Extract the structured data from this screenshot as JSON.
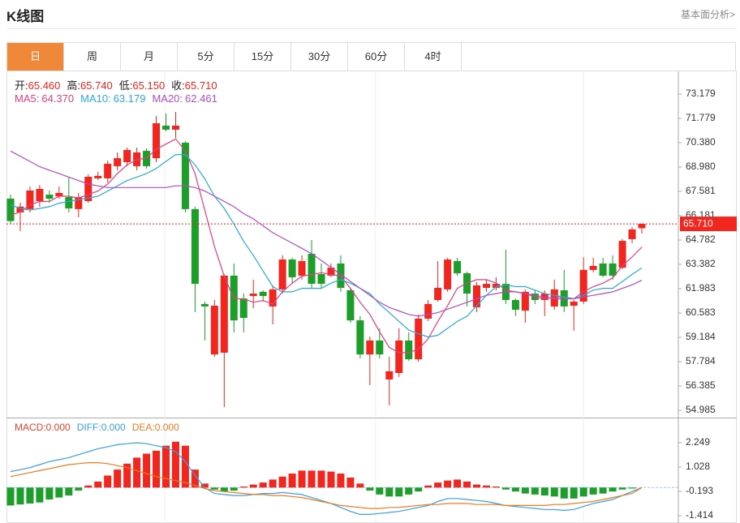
{
  "header": {
    "title": "K线图",
    "link": "基本面分析>"
  },
  "tabs": [
    "日",
    "周",
    "月",
    "5分",
    "15分",
    "30分",
    "60分",
    "4时"
  ],
  "active_tab": 0,
  "chart_data": [
    {
      "type": "candlestick",
      "ohlc_labels": [
        {
          "name": "开:",
          "value_label": "65.460"
        },
        {
          "name": "高:",
          "value_label": "65.740"
        },
        {
          "name": "低:",
          "value_label": "65.150"
        },
        {
          "name": "收:",
          "value_label": "65.710"
        }
      ],
      "up_color": "#f0261f",
      "down_color": "#1d9e2a",
      "open": [
        67.16,
        66.37,
        66.56,
        67.02,
        67.39,
        67.3,
        67.25,
        66.56,
        67.02,
        68.33,
        68.33,
        69.03,
        69.26,
        69.03,
        69.91,
        69.49,
        71.36,
        71.13,
        70.38,
        66.56,
        61.1,
        58.2,
        58.3,
        62.73,
        61.42,
        61.56,
        61.8,
        60.96,
        61.94,
        63.66,
        62.73,
        63.99,
        62.82,
        62.73,
        63.43,
        61.89,
        60.16,
        58.2,
        59.0,
        56.76,
        57.13,
        59.0,
        57.92,
        60.26,
        61.33,
        61.94,
        63.57,
        62.87,
        60.91,
        62.03,
        62.03,
        62.26,
        61.33,
        60.72,
        61.7,
        61.33,
        60.96,
        61.89,
        61.0,
        61.24,
        63.06,
        63.43,
        63.43,
        63.19,
        64.83,
        65.46
      ],
      "high": [
        67.39,
        66.93,
        67.86,
        67.95,
        67.63,
        67.86,
        68.42,
        67.49,
        68.56,
        68.7,
        69.35,
        69.82,
        70.1,
        70.1,
        70.05,
        71.92,
        72.06,
        72.15,
        70.47,
        66.7,
        61.24,
        61.33,
        62.82,
        63.43,
        61.7,
        62.5,
        61.89,
        62.17,
        63.9,
        63.76,
        63.9,
        64.78,
        63.43,
        63.43,
        63.9,
        62.03,
        60.4,
        59.23,
        59.7,
        58.06,
        59.7,
        59.46,
        60.49,
        61.33,
        63.57,
        63.76,
        63.76,
        62.96,
        62.36,
        62.5,
        62.64,
        64.22,
        61.42,
        61.94,
        61.89,
        61.89,
        62.5,
        63.06,
        61.33,
        63.8,
        63.76,
        63.76,
        63.9,
        64.83,
        65.53,
        65.74
      ],
      "low": [
        65.71,
        65.29,
        66.37,
        66.7,
        66.93,
        67.16,
        66.37,
        66.09,
        66.93,
        68.23,
        68.09,
        68.79,
        69.03,
        68.79,
        68.89,
        69.26,
        71.03,
        70.66,
        66.37,
        60.63,
        59.0,
        58.06,
        55.17,
        59.46,
        59.46,
        60.86,
        61.24,
        59.93,
        61.7,
        62.26,
        62.5,
        62.03,
        62.03,
        62.64,
        61.8,
        60.02,
        57.97,
        56.43,
        57.97,
        55.27,
        56.9,
        57.83,
        57.78,
        60.12,
        61.24,
        61.8,
        62.73,
        60.96,
        60.63,
        61.8,
        61.89,
        61.1,
        60.4,
        60.02,
        61.1,
        60.4,
        60.77,
        60.63,
        59.56,
        61.1,
        62.92,
        62.64,
        62.5,
        63.1,
        64.59,
        65.15
      ],
      "close": [
        65.87,
        66.7,
        67.63,
        67.72,
        67.16,
        67.49,
        66.6,
        67.25,
        68.42,
        68.47,
        69.17,
        69.49,
        69.96,
        69.82,
        69.03,
        71.5,
        71.13,
        71.36,
        66.56,
        62.26,
        60.96,
        61.0,
        62.73,
        60.16,
        60.3,
        61.7,
        61.56,
        61.94,
        63.66,
        62.64,
        63.57,
        62.26,
        62.26,
        63.19,
        62.03,
        60.16,
        58.2,
        59.0,
        58.2,
        57.23,
        59.0,
        57.92,
        60.26,
        61.1,
        62.03,
        63.66,
        62.87,
        61.7,
        62.17,
        62.26,
        62.26,
        61.33,
        60.77,
        61.8,
        61.33,
        61.7,
        61.94,
        60.96,
        61.24,
        63.06,
        63.29,
        62.73,
        62.73,
        64.73,
        65.39,
        65.71
      ],
      "series": [
        {
          "name": "MA5:",
          "value_label": "64.370",
          "color": "#e0407f",
          "values": [
            66.2,
            66.4,
            66.8,
            67.0,
            67.0,
            67.3,
            67.3,
            67.2,
            67.4,
            67.6,
            68.0,
            68.6,
            69.1,
            69.4,
            69.5,
            70.0,
            70.3,
            70.6,
            69.9,
            68.6,
            66.5,
            64.4,
            62.7,
            61.4,
            61.4,
            61.2,
            61.3,
            61.1,
            61.8,
            62.3,
            62.7,
            62.8,
            62.9,
            62.8,
            62.7,
            62.0,
            61.2,
            60.5,
            59.5,
            58.6,
            58.3,
            58.3,
            58.5,
            59.1,
            60.1,
            61.0,
            62.0,
            62.3,
            62.5,
            62.5,
            62.3,
            61.9,
            61.8,
            61.7,
            61.5,
            61.4,
            61.5,
            61.5,
            61.4,
            61.8,
            62.1,
            62.3,
            62.6,
            63.3,
            63.8,
            64.37
          ]
        },
        {
          "name": "MA10:",
          "value_label": "63.179",
          "color": "#2aaad8",
          "values": [
            66.8,
            66.6,
            66.5,
            66.6,
            66.7,
            66.9,
            67.0,
            67.1,
            67.2,
            67.3,
            67.6,
            67.9,
            68.2,
            68.4,
            68.6,
            68.9,
            69.3,
            69.7,
            69.7,
            69.1,
            68.3,
            67.3,
            66.6,
            65.7,
            64.7,
            63.9,
            63.0,
            62.1,
            61.8,
            61.8,
            62.0,
            62.0,
            62.0,
            62.3,
            62.5,
            62.3,
            62.0,
            61.7,
            61.1,
            60.6,
            60.1,
            59.6,
            59.4,
            59.2,
            59.3,
            59.7,
            60.1,
            60.4,
            61.0,
            61.6,
            62.1,
            62.2,
            62.1,
            62.1,
            61.9,
            61.7,
            61.6,
            61.5,
            61.4,
            61.6,
            61.9,
            62.0,
            62.0,
            62.4,
            62.8,
            63.179
          ]
        },
        {
          "name": "MA20:",
          "value_label": "62.461",
          "color": "#b04cc4",
          "values": [
            69.9,
            69.6,
            69.3,
            69.0,
            68.8,
            68.6,
            68.4,
            68.2,
            68.0,
            67.9,
            67.8,
            67.8,
            67.8,
            67.8,
            67.8,
            67.8,
            67.8,
            67.9,
            67.9,
            67.8,
            67.6,
            67.3,
            67.0,
            66.7,
            66.3,
            66.0,
            65.6,
            65.2,
            64.9,
            64.6,
            64.3,
            64.0,
            63.6,
            63.2,
            62.8,
            62.4,
            62.0,
            61.6,
            61.2,
            60.9,
            60.7,
            60.5,
            60.4,
            60.5,
            60.6,
            60.8,
            61.0,
            61.2,
            61.4,
            61.6,
            61.7,
            61.8,
            61.8,
            61.7,
            61.6,
            61.5,
            61.4,
            61.4,
            61.4,
            61.5,
            61.6,
            61.7,
            61.8,
            62.0,
            62.2,
            62.461
          ]
        }
      ],
      "last_price": 65.71,
      "last_price_label": "65.710",
      "ylim": [
        54.565,
        74.485
      ],
      "yticks": [
        73.179,
        71.779,
        {
          "value": 70.38,
          "label": "70.380"
        },
        {
          "value": 68.98,
          "label": "68.980"
        },
        67.581,
        66.181,
        64.782,
        63.382,
        61.983,
        60.583,
        59.184,
        57.784,
        56.385,
        54.985
      ]
    },
    {
      "type": "bar",
      "up_color": "#f0261f",
      "down_color": "#1d9e2a",
      "series": [
        {
          "name": "MACD:",
          "value_label": "0.000",
          "color": "#e8402e",
          "style": "bar",
          "values": [
            -0.9,
            -0.85,
            -0.8,
            -0.75,
            -0.6,
            -0.5,
            -0.4,
            -0.15,
            0.1,
            0.3,
            0.6,
            0.9,
            1.2,
            1.5,
            1.7,
            1.85,
            2.1,
            2.3,
            2.1,
            0.9,
            0.2,
            -0.1,
            -0.2,
            -0.15,
            0.05,
            0.15,
            0.25,
            0.4,
            0.55,
            0.7,
            0.85,
            0.85,
            0.85,
            0.8,
            0.7,
            0.5,
            0.2,
            -0.15,
            -0.35,
            -0.45,
            -0.45,
            -0.35,
            -0.2,
            0.1,
            0.25,
            0.35,
            0.4,
            0.3,
            0.15,
            0.1,
            0.05,
            -0.1,
            -0.2,
            -0.3,
            -0.35,
            -0.4,
            -0.45,
            -0.55,
            -0.55,
            -0.45,
            -0.35,
            -0.3,
            -0.2,
            -0.1,
            -0.05,
            0
          ]
        },
        {
          "name": "DIFF:",
          "value_label": "0.000",
          "color": "#3aa0e0",
          "style": "line",
          "values": [
            0.8,
            0.9,
            1.0,
            1.15,
            1.3,
            1.4,
            1.5,
            1.65,
            1.8,
            1.95,
            2.05,
            2.15,
            2.2,
            2.25,
            2.2,
            2.1,
            2.0,
            1.8,
            1.3,
            0.6,
            0.0,
            -0.3,
            -0.35,
            -0.4,
            -0.4,
            -0.35,
            -0.3,
            -0.3,
            -0.25,
            -0.3,
            -0.35,
            -0.5,
            -0.65,
            -0.8,
            -1.0,
            -1.2,
            -1.35,
            -1.35,
            -1.3,
            -1.25,
            -1.2,
            -1.1,
            -1.0,
            -0.9,
            -0.7,
            -0.55,
            -0.55,
            -0.6,
            -0.65,
            -0.7,
            -0.8,
            -0.9,
            -0.95,
            -1.0,
            -1.05,
            -1.1,
            -1.1,
            -1.15,
            -1.1,
            -0.95,
            -0.8,
            -0.7,
            -0.6,
            -0.4,
            -0.2,
            0.0
          ]
        },
        {
          "name": "DEA:",
          "value_label": "0.000",
          "color": "#f07a20",
          "style": "line",
          "values": [
            0.55,
            0.65,
            0.75,
            0.85,
            0.95,
            1.05,
            1.15,
            1.2,
            1.25,
            1.25,
            1.2,
            1.1,
            1.0,
            0.85,
            0.7,
            0.55,
            0.45,
            0.35,
            0.25,
            0.1,
            -0.05,
            -0.15,
            -0.2,
            -0.25,
            -0.3,
            -0.35,
            -0.35,
            -0.4,
            -0.4,
            -0.45,
            -0.5,
            -0.6,
            -0.7,
            -0.8,
            -0.9,
            -0.95,
            -1.0,
            -1.05,
            -1.05,
            -1.0,
            -1.0,
            -0.95,
            -0.9,
            -0.85,
            -0.85,
            -0.8,
            -0.8,
            -0.8,
            -0.85,
            -0.85,
            -0.85,
            -0.9,
            -0.9,
            -0.9,
            -0.9,
            -0.9,
            -0.85,
            -0.85,
            -0.8,
            -0.75,
            -0.7,
            -0.6,
            -0.5,
            -0.4,
            -0.3,
            0.0
          ]
        }
      ],
      "ylim": [
        -1.78,
        3.389
      ],
      "yticks": [
        2.249,
        1.028,
        -0.193,
        -1.414
      ]
    }
  ]
}
